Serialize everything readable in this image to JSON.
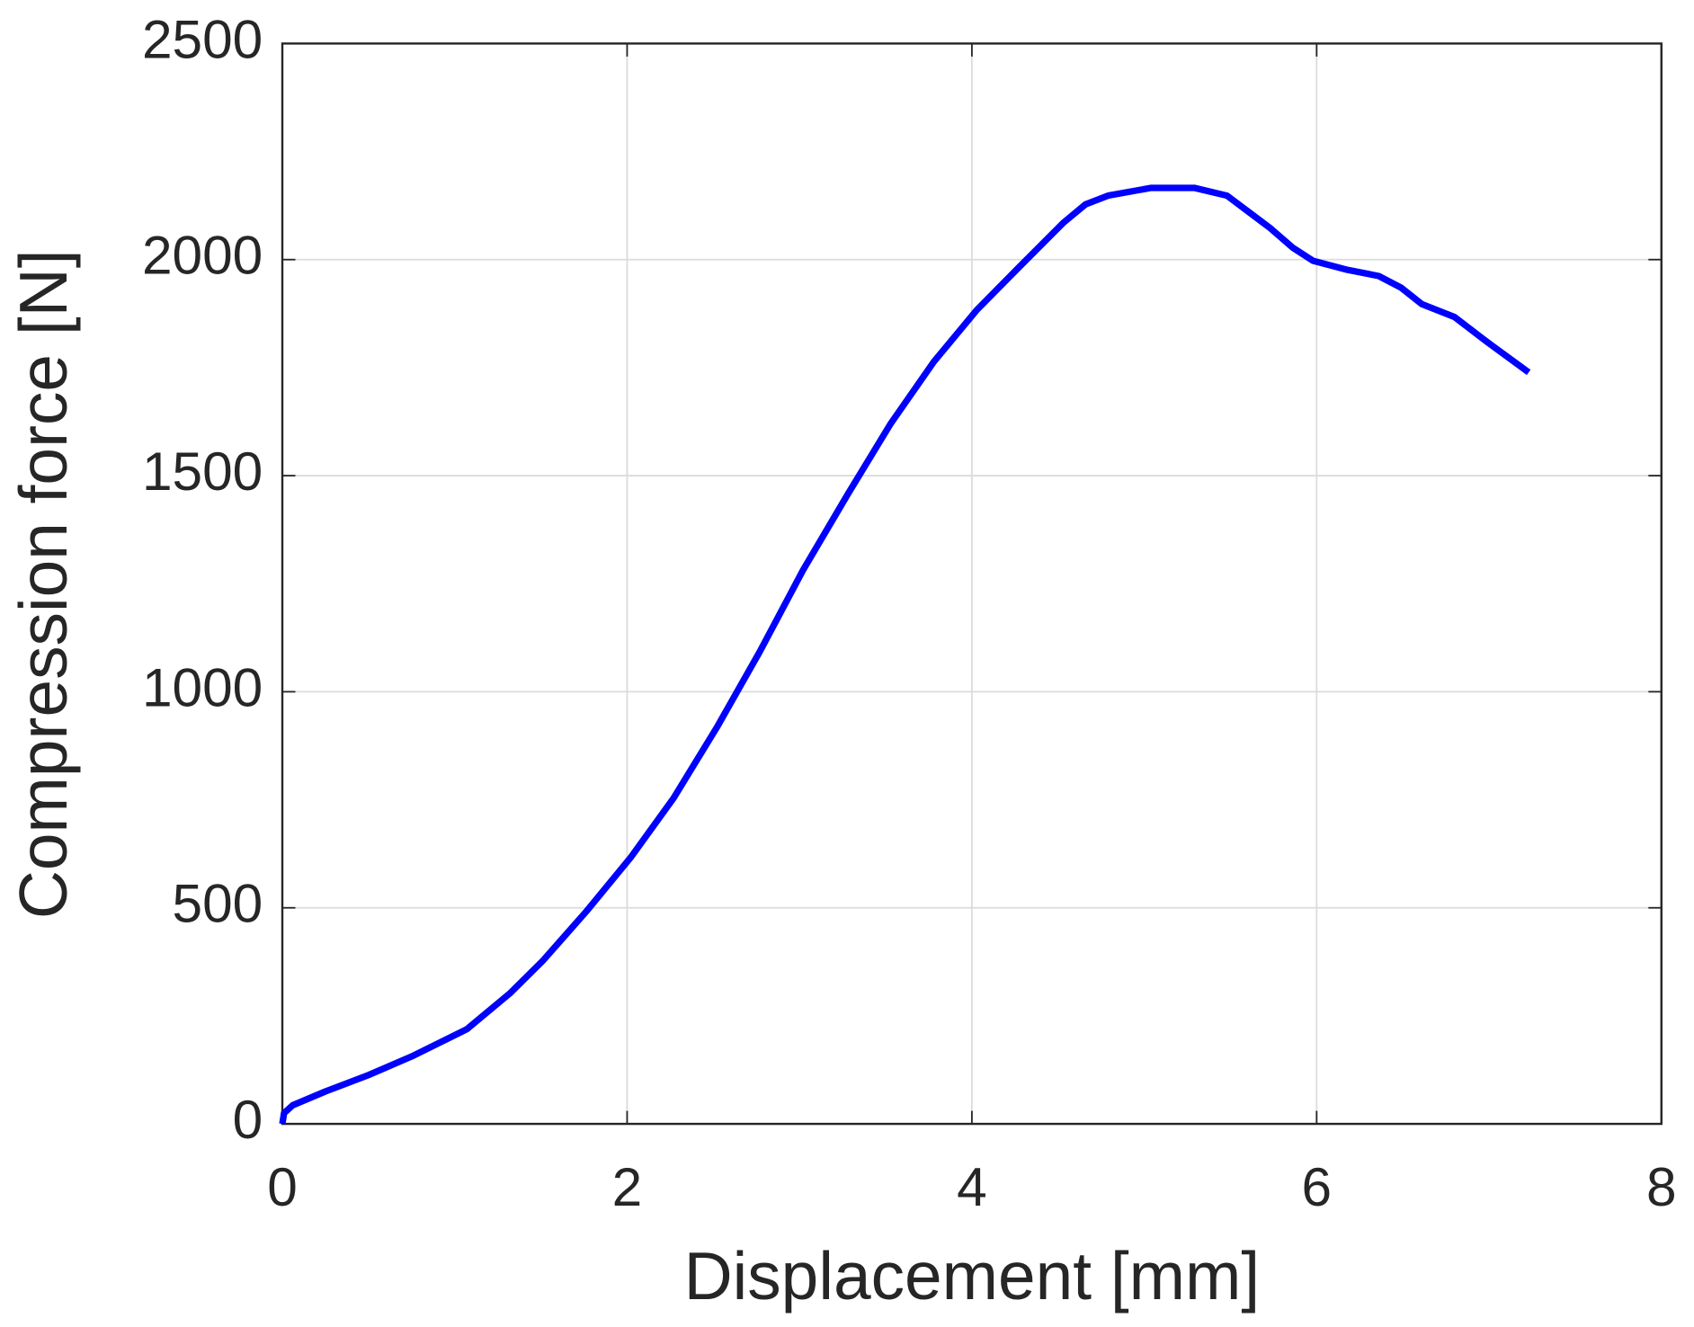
{
  "chart_data": {
    "type": "line",
    "xlabel": "Displacement [mm]",
    "ylabel": "Compression force [N]",
    "x": [
      0,
      0.01,
      0.06,
      0.25,
      0.5,
      0.75,
      1.07,
      1.32,
      1.51,
      1.76,
      2.02,
      2.27,
      2.52,
      2.77,
      3.02,
      3.28,
      3.53,
      3.78,
      4.03,
      4.28,
      4.53,
      4.66,
      4.79,
      5.04,
      5.29,
      5.48,
      5.73,
      5.86,
      5.98,
      6.17,
      6.36,
      6.49,
      6.61,
      6.8,
      6.99,
      7.23
    ],
    "series": [
      {
        "name": "Compression force",
        "color": "#0000ff",
        "values": [
          0,
          25,
          43,
          75,
          113,
          156,
          219,
          302,
          377,
          490,
          616,
          754,
          917,
          1093,
          1281,
          1457,
          1621,
          1764,
          1884,
          1985,
          2085,
          2128,
          2148,
          2166,
          2166,
          2148,
          2073,
          2028,
          1997,
          1977,
          1962,
          1935,
          1897,
          1867,
          1809,
          1739
        ]
      }
    ],
    "xlim": [
      0,
      8
    ],
    "xticks": [
      0,
      2,
      4,
      6,
      8
    ],
    "ylim": [
      0,
      2500
    ],
    "yticks": [
      0,
      500,
      1000,
      1500,
      2000,
      2500
    ],
    "grid": true
  }
}
